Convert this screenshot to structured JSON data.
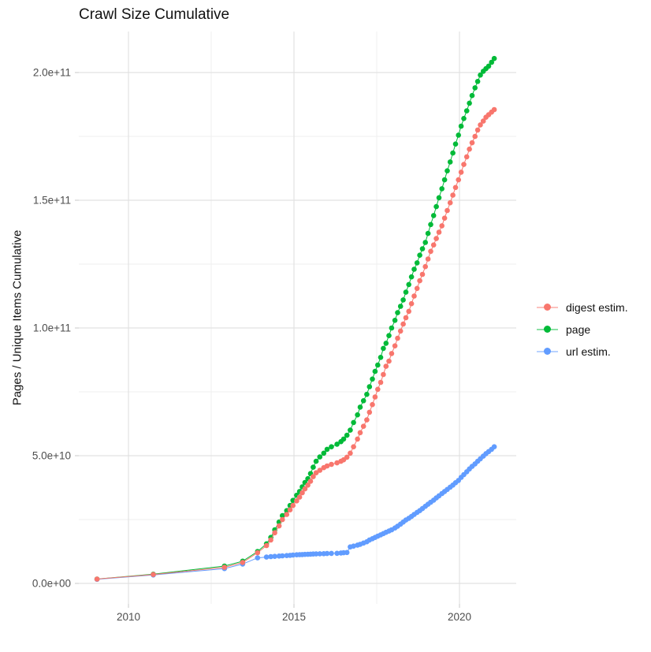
{
  "chart_data": {
    "type": "scatter",
    "title": "Crawl Size Cumulative",
    "xlabel": "",
    "ylabel": "Pages / Unique Items Cumulative",
    "legend_position": "right",
    "grid": true,
    "x_tick_labels": [
      "2010",
      "2015",
      "2020"
    ],
    "x_tick_values": [
      2010,
      2015,
      2020
    ],
    "x_minor_ticks": [
      2012.5,
      2017.5
    ],
    "y_tick_labels": [
      "0.0e+00",
      "5.0e+10",
      "1.0e+11",
      "1.5e+11",
      "2.0e+11"
    ],
    "y_tick_values": [
      0,
      50000000000.0,
      100000000000.0,
      150000000000.0,
      200000000000.0
    ],
    "y_minor_ticks": [
      25000000000.0,
      75000000000.0,
      125000000000.0,
      175000000000.0
    ],
    "xlim": [
      2008.5,
      2021.7
    ],
    "ylim": [
      -10000000000.0,
      216000000000.0
    ],
    "x": [
      2009.05,
      2010.75,
      2012.9,
      2013.45,
      2013.9,
      2014.17,
      2014.3,
      2014.42,
      2014.55,
      2014.65,
      2014.78,
      2014.88,
      2014.97,
      2015.08,
      2015.17,
      2015.25,
      2015.33,
      2015.42,
      2015.5,
      2015.58,
      2015.67,
      2015.78,
      2015.9,
      2016.0,
      2016.13,
      2016.3,
      2016.42,
      2016.5,
      2016.6,
      2016.7,
      2016.8,
      2016.92,
      2017.0,
      2017.1,
      2017.2,
      2017.28,
      2017.37,
      2017.45,
      2017.53,
      2017.62,
      2017.7,
      2017.78,
      2017.87,
      2017.95,
      2018.05,
      2018.13,
      2018.22,
      2018.3,
      2018.38,
      2018.47,
      2018.55,
      2018.63,
      2018.72,
      2018.8,
      2018.88,
      2018.97,
      2019.05,
      2019.13,
      2019.22,
      2019.3,
      2019.38,
      2019.47,
      2019.55,
      2019.63,
      2019.72,
      2019.8,
      2019.88,
      2019.97,
      2020.05,
      2020.13,
      2020.22,
      2020.3,
      2020.38,
      2020.47,
      2020.55,
      2020.63,
      2020.72,
      2020.8,
      2020.88,
      2020.97,
      2021.05
    ],
    "series": [
      {
        "name": "digest estim.",
        "color": "#F8766D",
        "values": [
          1700000000.0,
          3500000000.0,
          6300000000.0,
          8200000000.0,
          12000000000.0,
          14800000000.0,
          17000000000.0,
          19800000000.0,
          22500000000.0,
          25000000000.0,
          27000000000.0,
          28800000000.0,
          30500000000.0,
          32300000000.0,
          33800000000.0,
          35500000000.0,
          37000000000.0,
          38500000000.0,
          40000000000.0,
          41800000000.0,
          43300000000.0,
          44300000000.0,
          45300000000.0,
          46000000000.0,
          46600000000.0,
          47200000000.0,
          47800000000.0,
          48400000000.0,
          49400000000.0,
          51000000000.0,
          53500000000.0,
          56500000000.0,
          59000000000.0,
          61500000000.0,
          64000000000.0,
          67000000000.0,
          70000000000.0,
          73000000000.0,
          76000000000.0,
          78700000000.0,
          81800000000.0,
          85000000000.0,
          87000000000.0,
          90000000000.0,
          93000000000.0,
          96000000000.0,
          98800000000.0,
          101500000000.0,
          104000000000.0,
          106500000000.0,
          109500000000.0,
          112500000000.0,
          115500000000.0,
          118500000000.0,
          121000000000.0,
          124000000000.0,
          127000000000.0,
          130000000000.0,
          132500000000.0,
          135000000000.0,
          137500000000.0,
          140000000000.0,
          143000000000.0,
          146000000000.0,
          149000000000.0,
          152000000000.0,
          155000000000.0,
          158000000000.0,
          161000000000.0,
          164000000000.0,
          167000000000.0,
          170000000000.0,
          172500000000.0,
          175000000000.0,
          177500000000.0,
          179500000000.0,
          181000000000.0,
          182500000000.0,
          183500000000.0,
          184500000000.0,
          185500000000.0
        ]
      },
      {
        "name": "page",
        "color": "#00BA38",
        "values": [
          1700000000.0,
          3600000000.0,
          6800000000.0,
          8700000000.0,
          12500000000.0,
          15500000000.0,
          18000000000.0,
          21000000000.0,
          24000000000.0,
          26500000000.0,
          28500000000.0,
          30500000000.0,
          32500000000.0,
          34500000000.0,
          36000000000.0,
          37800000000.0,
          39500000000.0,
          41000000000.0,
          43000000000.0,
          45500000000.0,
          47800000000.0,
          49500000000.0,
          51000000000.0,
          52500000000.0,
          53500000000.0,
          54500000000.0,
          55500000000.0,
          56500000000.0,
          58000000000.0,
          60000000000.0,
          63000000000.0,
          66000000000.0,
          69000000000.0,
          71500000000.0,
          74000000000.0,
          77000000000.0,
          80000000000.0,
          83000000000.0,
          85500000000.0,
          88500000000.0,
          92000000000.0,
          94000000000.0,
          97000000000.0,
          100000000000.0,
          103000000000.0,
          106000000000.0,
          108500000000.0,
          111000000000.0,
          114000000000.0,
          117000000000.0,
          120000000000.0,
          123000000000.0,
          125500000000.0,
          128500000000.0,
          131000000000.0,
          133500000000.0,
          137000000000.0,
          140500000000.0,
          144000000000.0,
          147500000000.0,
          151000000000.0,
          154500000000.0,
          158000000000.0,
          161500000000.0,
          165000000000.0,
          168500000000.0,
          172000000000.0,
          175500000000.0,
          179000000000.0,
          182000000000.0,
          185000000000.0,
          188000000000.0,
          191000000000.0,
          194000000000.0,
          196500000000.0,
          199000000000.0,
          200500000000.0,
          201500000000.0,
          202500000000.0,
          204000000000.0,
          205500000000.0
        ]
      },
      {
        "name": "url estim.",
        "color": "#619CFF",
        "values": [
          1600000000.0,
          3300000000.0,
          5800000000.0,
          7600000000.0,
          10000000000.0,
          10300000000.0,
          10500000000.0,
          10600000000.0,
          10700000000.0,
          10800000000.0,
          10900000000.0,
          11000000000.0,
          11100000000.0,
          11200000000.0,
          11250000000.0,
          11300000000.0,
          11350000000.0,
          11400000000.0,
          11450000000.0,
          11500000000.0,
          11550000000.0,
          11600000000.0,
          11650000000.0,
          11700000000.0,
          11750000000.0,
          11800000000.0,
          11900000000.0,
          12000000000.0,
          12100000000.0,
          14300000000.0,
          14600000000.0,
          15000000000.0,
          15300000000.0,
          15800000000.0,
          16300000000.0,
          17000000000.0,
          17500000000.0,
          18000000000.0,
          18500000000.0,
          19000000000.0,
          19500000000.0,
          20000000000.0,
          20500000000.0,
          21000000000.0,
          21700000000.0,
          22400000000.0,
          23200000000.0,
          24000000000.0,
          24800000000.0,
          25500000000.0,
          26200000000.0,
          27000000000.0,
          27800000000.0,
          28500000000.0,
          29300000000.0,
          30200000000.0,
          31000000000.0,
          31800000000.0,
          32600000000.0,
          33500000000.0,
          34300000000.0,
          35200000000.0,
          36000000000.0,
          36800000000.0,
          37700000000.0,
          38500000000.0,
          39400000000.0,
          40300000000.0,
          41500000000.0,
          42600000000.0,
          43700000000.0,
          44800000000.0,
          45800000000.0,
          46800000000.0,
          47800000000.0,
          48800000000.0,
          49800000000.0,
          50800000000.0,
          51600000000.0,
          52500000000.0,
          53500000000.0
        ]
      }
    ],
    "draw_order": [
      1,
      2,
      0
    ]
  },
  "style_colors": {
    "tick_label": "#4d4d4d",
    "grid_major": "#e2e2e2",
    "grid_minor": "#efefef",
    "tick_mark": "#d2d2d2",
    "text": "#111111"
  }
}
